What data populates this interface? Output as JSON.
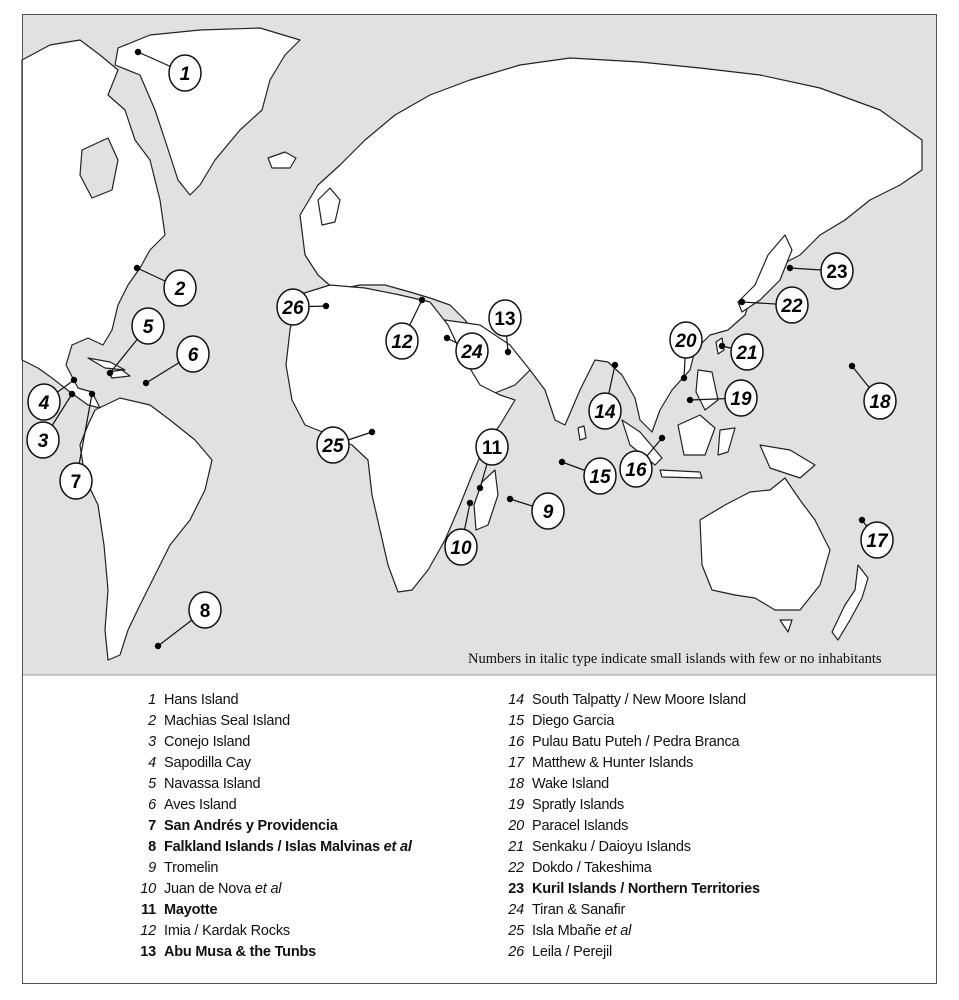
{
  "map": {
    "ocean_color": "#e1e1e1",
    "land_color": "#ffffff",
    "note": "Numbers in italic type indicate small islands with few or no inhabitants"
  },
  "markers": [
    {
      "num": "1",
      "italic": true
    },
    {
      "num": "2",
      "italic": true
    },
    {
      "num": "3",
      "italic": true
    },
    {
      "num": "4",
      "italic": true
    },
    {
      "num": "5",
      "italic": true
    },
    {
      "num": "6",
      "italic": true
    },
    {
      "num": "7",
      "italic": false
    },
    {
      "num": "8",
      "italic": false
    },
    {
      "num": "9",
      "italic": true
    },
    {
      "num": "10",
      "italic": true
    },
    {
      "num": "11",
      "italic": false
    },
    {
      "num": "12",
      "italic": true
    },
    {
      "num": "13",
      "italic": false
    },
    {
      "num": "14",
      "italic": true
    },
    {
      "num": "15",
      "italic": true
    },
    {
      "num": "16",
      "italic": true
    },
    {
      "num": "17",
      "italic": true
    },
    {
      "num": "18",
      "italic": true
    },
    {
      "num": "19",
      "italic": true
    },
    {
      "num": "20",
      "italic": true
    },
    {
      "num": "21",
      "italic": true
    },
    {
      "num": "22",
      "italic": true
    },
    {
      "num": "23",
      "italic": false
    },
    {
      "num": "24",
      "italic": true
    },
    {
      "num": "25",
      "italic": true
    },
    {
      "num": "26",
      "italic": true
    }
  ],
  "legend": [
    {
      "num": "1",
      "label": "Hans Island",
      "bold": false,
      "suffix": ""
    },
    {
      "num": "2",
      "label": "Machias Seal Island",
      "bold": false,
      "suffix": ""
    },
    {
      "num": "3",
      "label": "Conejo Island",
      "bold": false,
      "suffix": ""
    },
    {
      "num": "4",
      "label": "Sapodilla Cay",
      "bold": false,
      "suffix": ""
    },
    {
      "num": "5",
      "label": "Navassa Island",
      "bold": false,
      "suffix": ""
    },
    {
      "num": "6",
      "label": "Aves Island",
      "bold": false,
      "suffix": ""
    },
    {
      "num": "7",
      "label": "San Andrés y Providencia",
      "bold": true,
      "suffix": ""
    },
    {
      "num": "8",
      "label": "Falkland Islands / Islas Malvinas ",
      "bold": true,
      "suffix": "et al"
    },
    {
      "num": "9",
      "label": "Tromelin",
      "bold": false,
      "suffix": ""
    },
    {
      "num": "10",
      "label": "Juan de Nova ",
      "bold": false,
      "suffix": "et al"
    },
    {
      "num": "11",
      "label": "Mayotte",
      "bold": true,
      "suffix": ""
    },
    {
      "num": "12",
      "label": "Imia / Kardak Rocks",
      "bold": false,
      "suffix": ""
    },
    {
      "num": "13",
      "label": "Abu Musa & the Tunbs",
      "bold": true,
      "suffix": ""
    },
    {
      "num": "14",
      "label": "South Talpatty / New Moore Island",
      "bold": false,
      "suffix": ""
    },
    {
      "num": "15",
      "label": "Diego Garcia",
      "bold": false,
      "suffix": ""
    },
    {
      "num": "16",
      "label": "Pulau Batu Puteh / Pedra Branca",
      "bold": false,
      "suffix": ""
    },
    {
      "num": "17",
      "label": "Matthew & Hunter Islands",
      "bold": false,
      "suffix": ""
    },
    {
      "num": "18",
      "label": "Wake Island",
      "bold": false,
      "suffix": ""
    },
    {
      "num": "19",
      "label": "Spratly Islands",
      "bold": false,
      "suffix": ""
    },
    {
      "num": "20",
      "label": "Paracel Islands",
      "bold": false,
      "suffix": ""
    },
    {
      "num": "21",
      "label": "Senkaku / Daioyu Islands",
      "bold": false,
      "suffix": ""
    },
    {
      "num": "22",
      "label": "Dokdo / Takeshima",
      "bold": false,
      "suffix": ""
    },
    {
      "num": "23",
      "label": "Kuril Islands / Northern Territories",
      "bold": true,
      "suffix": ""
    },
    {
      "num": "24",
      "label": "Tiran & Sanafir",
      "bold": false,
      "suffix": ""
    },
    {
      "num": "25",
      "label": "Isla Mbañe ",
      "bold": false,
      "suffix": "et al"
    },
    {
      "num": "26",
      "label": "Leila / Perejil",
      "bold": false,
      "suffix": ""
    }
  ]
}
